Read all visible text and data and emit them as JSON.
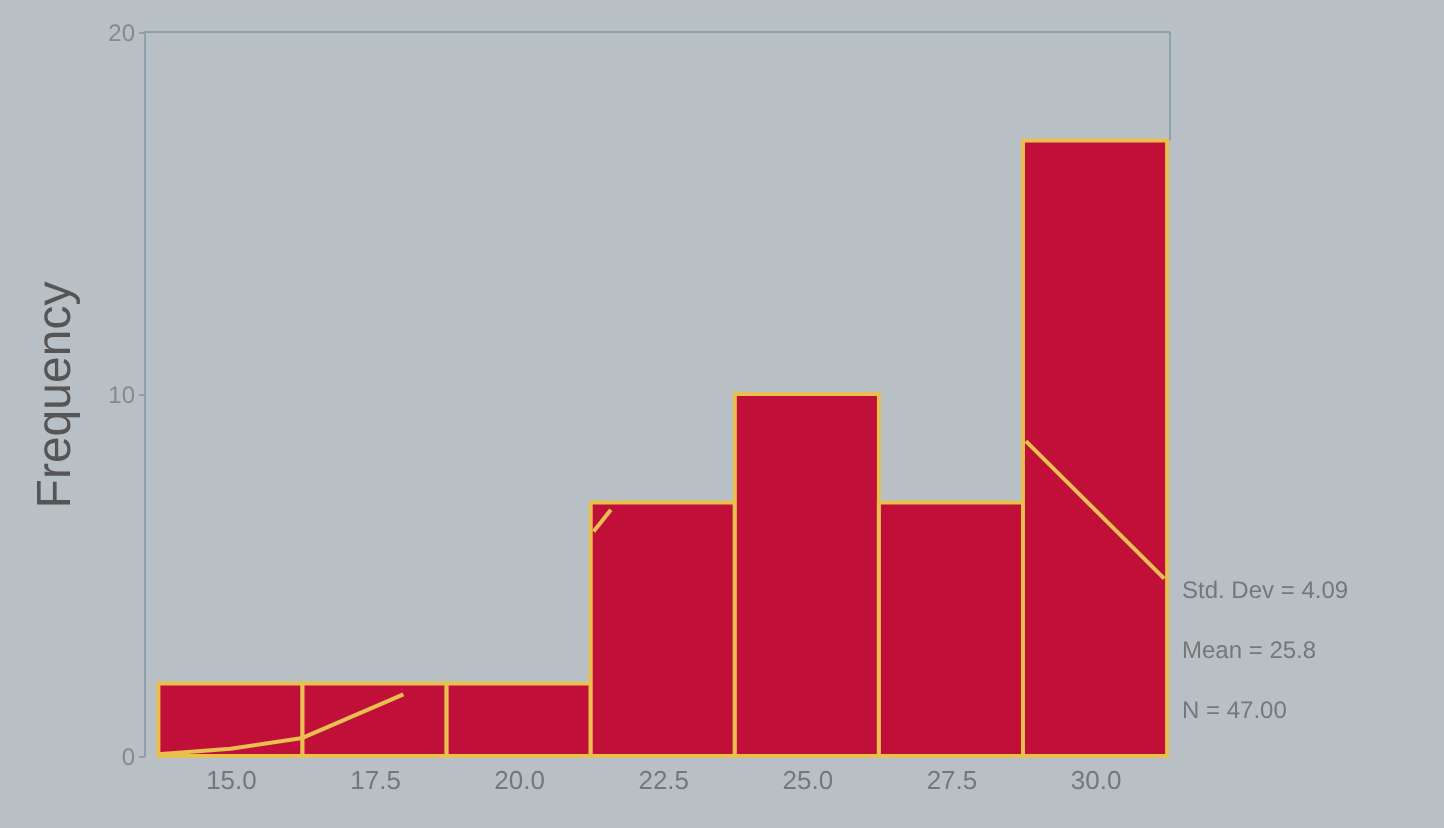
{
  "chart_data": {
    "type": "histogram",
    "ylabel": "Frequency",
    "bins": [
      13.75,
      16.25,
      18.75,
      21.25,
      23.75,
      26.25,
      28.75,
      31.25
    ],
    "values": [
      2,
      2,
      2,
      7,
      10,
      7,
      17
    ],
    "color": "#c0103a",
    "series": [
      {
        "type": "line",
        "color": "#e8c050",
        "x": [
          13.75,
          15.0,
          16.25,
          18.0,
          19.0,
          21.3,
          21.6,
          25.0,
          28.8,
          31.2
        ],
        "values": [
          0.05,
          0.2,
          0.5,
          1.7,
          null,
          6.2,
          6.8,
          null,
          8.7,
          4.9
        ]
      }
    ],
    "xlim": [
      13.5,
      31.3
    ],
    "ylim": [
      0,
      20
    ],
    "xticks": [
      {
        "value": 15,
        "label": "15.0"
      },
      {
        "value": 17.5,
        "label": "17.5"
      },
      {
        "value": 20,
        "label": "20.0"
      },
      {
        "value": 22.5,
        "label": "22.5"
      },
      {
        "value": 25,
        "label": "25.0"
      },
      {
        "value": 27.5,
        "label": "27.5"
      },
      {
        "value": 30,
        "label": "30.0"
      }
    ],
    "yticks": [
      0,
      10,
      20
    ],
    "grid": false,
    "annotations": [
      "Std. Dev = 4.09",
      "Mean = 25.8",
      "N = 47.00"
    ]
  }
}
